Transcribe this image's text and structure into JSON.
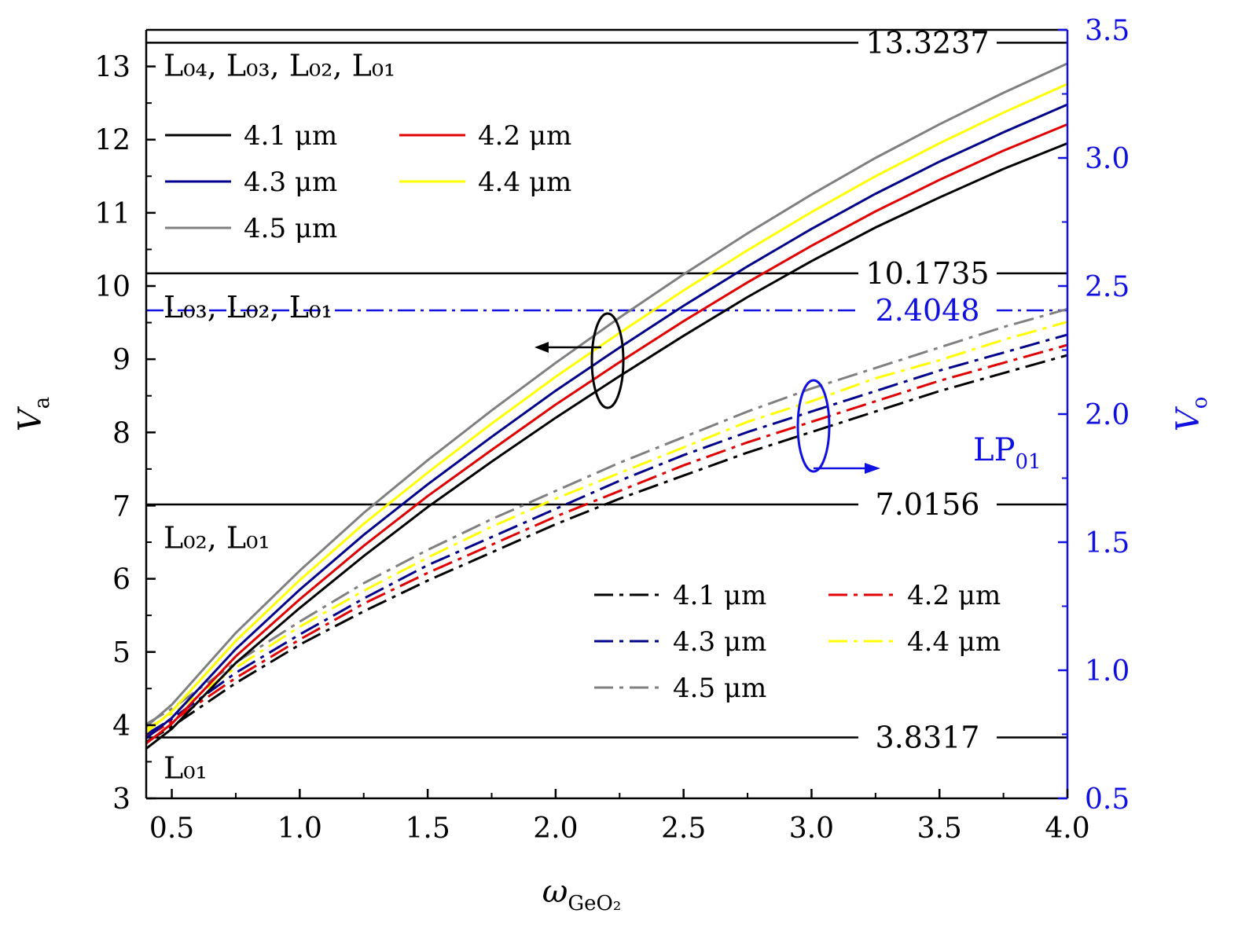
{
  "chart_data": {
    "type": "line",
    "xlabel": "ω",
    "xlabel_sub": "GeO₂",
    "ylabel_left": "V",
    "ylabel_left_sub": "a",
    "ylabel_right": "V",
    "ylabel_right_sub": "o",
    "xlim": [
      0.4,
      4.0
    ],
    "ylim_left": [
      3,
      13.5
    ],
    "ylim_right": [
      0.5,
      3.5
    ],
    "x_ticks": [
      "0.5",
      "1.0",
      "1.5",
      "2.0",
      "2.5",
      "3.0",
      "3.5",
      "4.0"
    ],
    "y_left_ticks": [
      "3",
      "4",
      "5",
      "6",
      "7",
      "8",
      "9",
      "10",
      "11",
      "12",
      "13"
    ],
    "y_right_ticks": [
      "0.5",
      "1.0",
      "1.5",
      "2.0",
      "2.5",
      "3.0",
      "3.5"
    ],
    "cutoffs_left": [
      {
        "value": 13.3237,
        "label": "13.3237"
      },
      {
        "value": 10.1735,
        "label": "10.1735"
      },
      {
        "value": 7.0156,
        "label": "7.0156"
      },
      {
        "value": 3.8317,
        "label": "3.8317"
      }
    ],
    "cutoff_right": {
      "value": 2.4048,
      "label": "2.4048",
      "mode": "LP",
      "mode_sub": "01"
    },
    "regions": [
      {
        "text": "L₀₄, L₀₃, L₀₂, L₀₁",
        "y": 13.0
      },
      {
        "text": "L₀₃, L₀₂, L₀₁",
        "y": 9.7
      },
      {
        "text": "L₀₂, L₀₁",
        "y": 6.55
      },
      {
        "text": "L₀₁",
        "y": 3.4
      }
    ],
    "x": [
      0.4,
      0.5,
      0.75,
      1.0,
      1.25,
      1.5,
      1.75,
      2.0,
      2.25,
      2.5,
      2.75,
      3.0,
      3.25,
      3.5,
      3.75,
      4.0
    ],
    "series_Va": [
      {
        "name": "4.1 μm",
        "color": "#000000",
        "axis": "left",
        "values": [
          3.68,
          3.95,
          4.85,
          5.6,
          6.31,
          6.98,
          7.6,
          8.2,
          8.77,
          9.32,
          9.85,
          10.34,
          10.8,
          11.21,
          11.6,
          11.95
        ]
      },
      {
        "name": "4.2 μm",
        "color": "#e00000",
        "axis": "left",
        "values": [
          3.75,
          4.02,
          4.94,
          5.72,
          6.45,
          7.13,
          7.76,
          8.38,
          8.96,
          9.52,
          10.05,
          10.55,
          11.02,
          11.45,
          11.85,
          12.21
        ]
      },
      {
        "name": "4.3 μm",
        "color": "#00008b",
        "axis": "left",
        "values": [
          3.82,
          4.1,
          5.04,
          5.85,
          6.6,
          7.29,
          7.94,
          8.57,
          9.16,
          9.73,
          10.27,
          10.78,
          11.26,
          11.7,
          12.1,
          12.48
        ]
      },
      {
        "name": "4.4 μm",
        "color": "#ffff00",
        "axis": "left",
        "values": [
          3.9,
          4.19,
          5.15,
          5.98,
          6.75,
          7.45,
          8.12,
          8.76,
          9.36,
          9.94,
          10.49,
          11.01,
          11.5,
          11.95,
          12.37,
          12.76
        ]
      },
      {
        "name": "4.5 μm",
        "color": "#808080",
        "axis": "left",
        "values": [
          3.98,
          4.28,
          5.26,
          6.11,
          6.9,
          7.62,
          8.3,
          8.95,
          9.57,
          10.16,
          10.72,
          11.25,
          11.75,
          12.21,
          12.64,
          13.04
        ]
      }
    ],
    "series_Vo": [
      {
        "name": "4.1 μm",
        "color": "#000000",
        "axis": "right",
        "values": [
          0.72,
          0.78,
          0.95,
          1.1,
          1.23,
          1.35,
          1.46,
          1.57,
          1.67,
          1.76,
          1.85,
          1.93,
          2.01,
          2.09,
          2.16,
          2.23
        ]
      },
      {
        "name": "4.2 μm",
        "color": "#e00000",
        "axis": "right",
        "values": [
          0.74,
          0.8,
          0.97,
          1.12,
          1.26,
          1.38,
          1.49,
          1.6,
          1.7,
          1.8,
          1.89,
          1.97,
          2.05,
          2.13,
          2.2,
          2.27
        ]
      },
      {
        "name": "4.3 μm",
        "color": "#00008b",
        "axis": "right",
        "values": [
          0.75,
          0.81,
          0.99,
          1.14,
          1.28,
          1.41,
          1.52,
          1.63,
          1.74,
          1.84,
          1.93,
          2.01,
          2.09,
          2.17,
          2.24,
          2.31
        ]
      },
      {
        "name": "4.4 μm",
        "color": "#ffff00",
        "axis": "right",
        "values": [
          0.77,
          0.83,
          1.01,
          1.17,
          1.31,
          1.44,
          1.56,
          1.67,
          1.77,
          1.87,
          1.97,
          2.05,
          2.14,
          2.21,
          2.29,
          2.36
        ]
      },
      {
        "name": "4.5 μm",
        "color": "#808080",
        "axis": "right",
        "values": [
          0.79,
          0.85,
          1.03,
          1.19,
          1.34,
          1.47,
          1.59,
          1.7,
          1.81,
          1.91,
          2.01,
          2.1,
          2.18,
          2.26,
          2.34,
          2.41
        ]
      }
    ],
    "legend_top": [
      "4.1 μm",
      "4.2 μm",
      "4.3 μm",
      "4.4 μm",
      "4.5 μm"
    ],
    "legend_bottom": [
      "4.1 μm",
      "4.2 μm",
      "4.3 μm",
      "4.4 μm",
      "4.5 μm"
    ],
    "axis_colors": {
      "left": "#000000",
      "right": "#1010e0"
    }
  }
}
